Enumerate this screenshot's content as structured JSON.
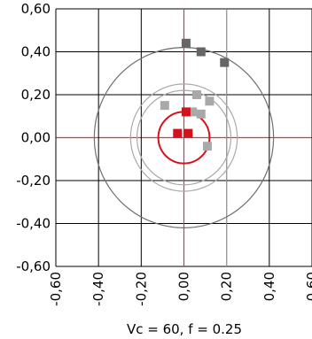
{
  "chart_data": {
    "type": "scatter",
    "title": "",
    "xlabel": "Vc = 60, f = 0.25",
    "ylabel": "",
    "xlim": [
      -0.6,
      0.6
    ],
    "ylim": [
      -0.6,
      0.6
    ],
    "xticks": [
      "-0,60",
      "-0,40",
      "-0,20",
      "0,00",
      "0,20",
      "0,40",
      "0,60"
    ],
    "yticks": [
      "0,60",
      "0,40",
      "0,20",
      "0,00",
      "-0,20",
      "-0,40",
      "-0,60"
    ],
    "grid": true,
    "colors": {
      "grid": "#000000",
      "axis_accent": "#e8303a",
      "dark_points": "#666666",
      "light_points": "#a9a9a9",
      "red_points": "#d4111c",
      "dark_circle": "#707070",
      "light_circle": "#a9a9a9",
      "red_circle": "#d4111c",
      "light_line": "#a9a9a9"
    },
    "circles": [
      {
        "kind": "dark",
        "r": 0.42
      },
      {
        "kind": "light",
        "r": 0.25
      },
      {
        "kind": "light",
        "r": 0.22
      },
      {
        "kind": "red",
        "r": 0.12
      }
    ],
    "vlines": [
      {
        "kind": "light",
        "x": 0.2
      }
    ],
    "series": [
      {
        "kind": "dark",
        "x": [
          0.01,
          0.08,
          0.19
        ],
        "y": [
          0.44,
          0.4,
          0.35
        ]
      },
      {
        "kind": "light",
        "x": [
          -0.09,
          0.06,
          0.12,
          0.04,
          0.08,
          0.11
        ],
        "y": [
          0.15,
          0.2,
          0.17,
          0.12,
          0.11,
          -0.04
        ]
      },
      {
        "kind": "red",
        "x": [
          -0.03,
          0.02,
          0.01
        ],
        "y": [
          0.02,
          0.02,
          0.12
        ]
      }
    ]
  }
}
